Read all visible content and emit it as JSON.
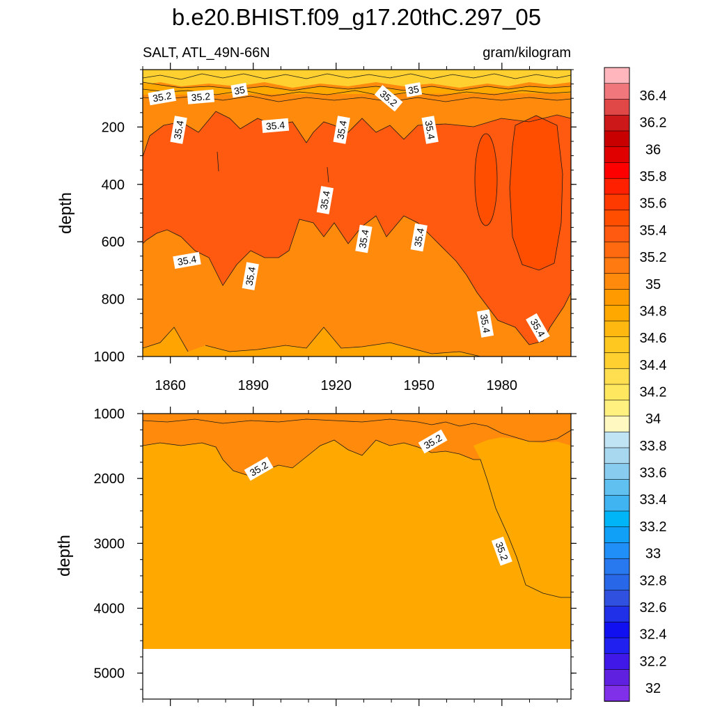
{
  "title": "b.e20.BHIST.f09_g17.20thC.297_05",
  "subtitle_left": "SALT, ATL_49N-66N",
  "subtitle_right": "gram/kilogram",
  "colorbar": {
    "labels": [
      "36.4",
      "36.2",
      "36",
      "35.8",
      "35.6",
      "35.4",
      "35.2",
      "35",
      "34.8",
      "34.6",
      "34.4",
      "34.2",
      "34",
      "33.8",
      "33.6",
      "33.4",
      "33.2",
      "33",
      "32.8",
      "32.6",
      "32.4",
      "32.2",
      "32"
    ],
    "colors": [
      "#ffb6bd",
      "#f0787c",
      "#e04848",
      "#cc1818",
      "#c80000",
      "#e00000",
      "#ff0000",
      "#ff2000",
      "#ff3a00",
      "#ff4e00",
      "#ff5a10",
      "#ff6a10",
      "#ff7a10",
      "#ff8a0c",
      "#ff9a00",
      "#ffa800",
      "#ffb810",
      "#ffc820",
      "#ffd030",
      "#ffde50",
      "#ffe860",
      "#fff080",
      "#fff8c0",
      "#c0e4f4",
      "#a8d8f0",
      "#88ccf0",
      "#60c0f0",
      "#40b4f0",
      "#00b4f8",
      "#10a0f8",
      "#2090f8",
      "#2878f0",
      "#2868e8",
      "#3050e0",
      "#2030e8",
      "#1010f0",
      "#2020f0",
      "#4018e8",
      "#6020e0",
      "#8030e8"
    ]
  },
  "chart_data": [
    {
      "type": "heatmap",
      "panel": "upper",
      "variable": "SALT",
      "region": "ATL_49N-66N",
      "units": "gram/kilogram",
      "ylabel": "depth",
      "x_ticks": [
        1860,
        1890,
        1920,
        1950,
        1980
      ],
      "y_ticks": [
        200,
        400,
        600,
        800,
        1000
      ],
      "xlim": [
        1850,
        2005
      ],
      "ylim": [
        0,
        1000
      ],
      "contour_labels": [
        {
          "text": "35.2",
          "x": 1857,
          "y": 95
        },
        {
          "text": "35.2",
          "x": 1871,
          "y": 95
        },
        {
          "text": "35",
          "x": 1885,
          "y": 72
        },
        {
          "text": "35.4",
          "x": 1863,
          "y": 210
        },
        {
          "text": "35.4",
          "x": 1898,
          "y": 195
        },
        {
          "text": "35.4",
          "x": 1922,
          "y": 210
        },
        {
          "text": "35.2",
          "x": 1939,
          "y": 100
        },
        {
          "text": "35",
          "x": 1948,
          "y": 70
        },
        {
          "text": "35.4",
          "x": 1954,
          "y": 210
        },
        {
          "text": "35.4",
          "x": 1916,
          "y": 455
        },
        {
          "text": "35.4",
          "x": 1930,
          "y": 590
        },
        {
          "text": "35.4",
          "x": 1950,
          "y": 585
        },
        {
          "text": "35.4",
          "x": 1866,
          "y": 665
        },
        {
          "text": "35.4",
          "x": 1889,
          "y": 720
        },
        {
          "text": "35.4",
          "x": 1974,
          "y": 885
        },
        {
          "text": "35.4",
          "x": 1993,
          "y": 900
        }
      ]
    },
    {
      "type": "heatmap",
      "panel": "lower",
      "ylabel": "depth",
      "y_ticks": [
        1000,
        2000,
        3000,
        4000,
        5000
      ],
      "xlim": [
        1850,
        2005
      ],
      "ylim": [
        1000,
        5400
      ],
      "bottom_depth": 4620,
      "contour_labels": [
        {
          "text": "35.2",
          "x": 1892,
          "y": 1850
        },
        {
          "text": "35.2",
          "x": 1955,
          "y": 1430
        },
        {
          "text": "35.2",
          "x": 1980,
          "y": 3120
        }
      ]
    }
  ]
}
